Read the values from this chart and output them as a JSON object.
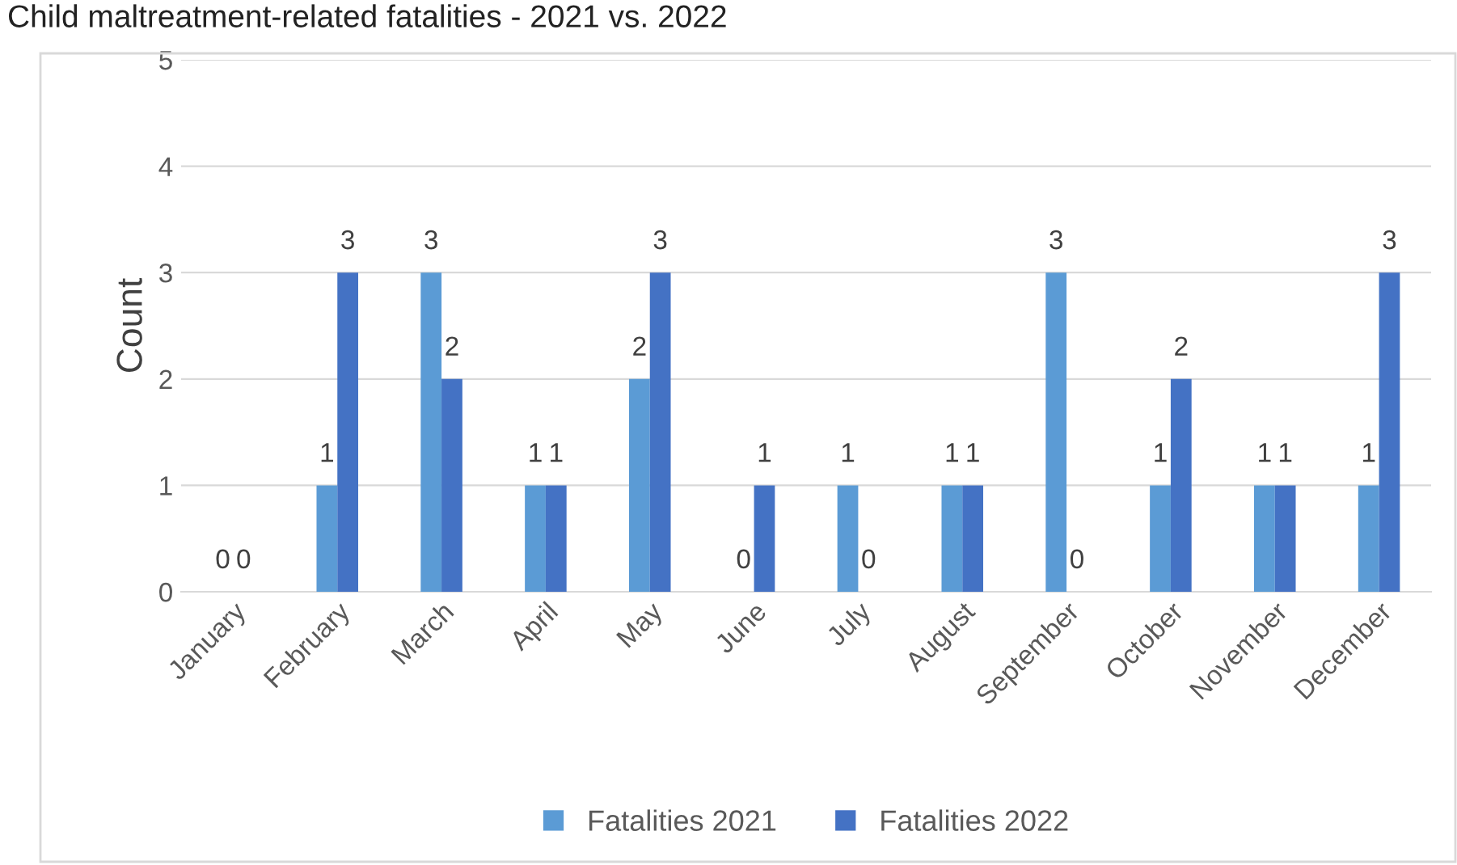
{
  "chart_data": {
    "type": "bar",
    "title": "Child maltreatment-related fatalities - 2021 vs. 2022",
    "ylabel": "Count",
    "categories": [
      "January",
      "February",
      "March",
      "April",
      "May",
      "June",
      "July",
      "August",
      "September",
      "October",
      "November",
      "December"
    ],
    "series": [
      {
        "name": "Fatalities 2021",
        "color": "#5b9bd5",
        "values": [
          0,
          1,
          3,
          1,
          2,
          0,
          1,
          1,
          3,
          1,
          1,
          1
        ]
      },
      {
        "name": "Fatalities 2022",
        "color": "#4472c4",
        "values": [
          0,
          3,
          2,
          1,
          3,
          1,
          0,
          1,
          0,
          2,
          1,
          3
        ]
      }
    ],
    "ylim": [
      0,
      5
    ],
    "yticks": [
      0,
      1,
      2,
      3,
      4,
      5
    ],
    "grid": "y",
    "legend": "bottom",
    "data_labels": true
  }
}
